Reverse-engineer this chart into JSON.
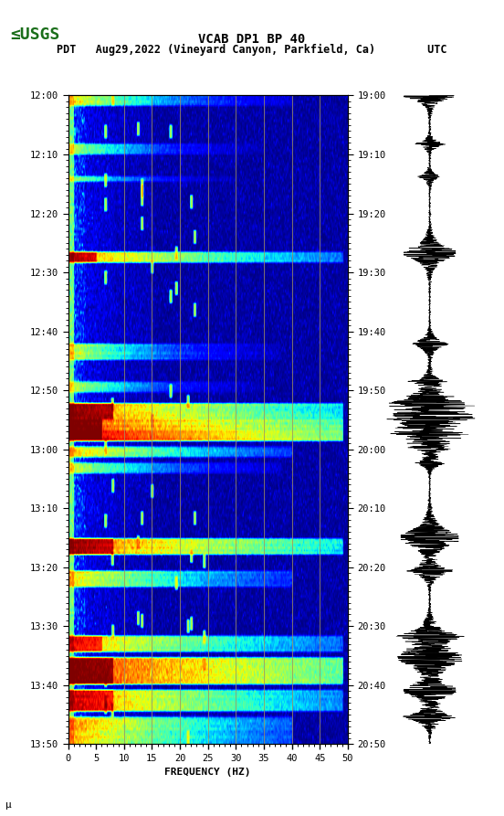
{
  "title_line1": "VCAB DP1 BP 40",
  "title_line2": "PDT   Aug29,2022 (Vineyard Canyon, Parkfield, Ca)        UTC",
  "xlabel": "FREQUENCY (HZ)",
  "freq_min": 0,
  "freq_max": 50,
  "freq_ticks": [
    0,
    5,
    10,
    15,
    20,
    25,
    30,
    35,
    40,
    45,
    50
  ],
  "time_labels_left": [
    "12:00",
    "12:10",
    "12:20",
    "12:30",
    "12:40",
    "12:50",
    "13:00",
    "13:10",
    "13:20",
    "13:30",
    "13:40",
    "13:50"
  ],
  "time_labels_right": [
    "19:00",
    "19:10",
    "19:20",
    "19:30",
    "19:40",
    "19:50",
    "20:00",
    "20:10",
    "20:20",
    "20:30",
    "20:40",
    "20:50"
  ],
  "n_time_steps": 240,
  "n_freq_steps": 500,
  "background_color": "#ffffff",
  "logo_color": "#1a6e1a",
  "vline_color": "#a09060",
  "vline_positions": [
    10,
    15,
    20,
    25,
    30,
    35,
    40,
    45
  ],
  "colormap": "jet",
  "fig_width": 5.52,
  "fig_height": 8.93,
  "dpi": 100
}
